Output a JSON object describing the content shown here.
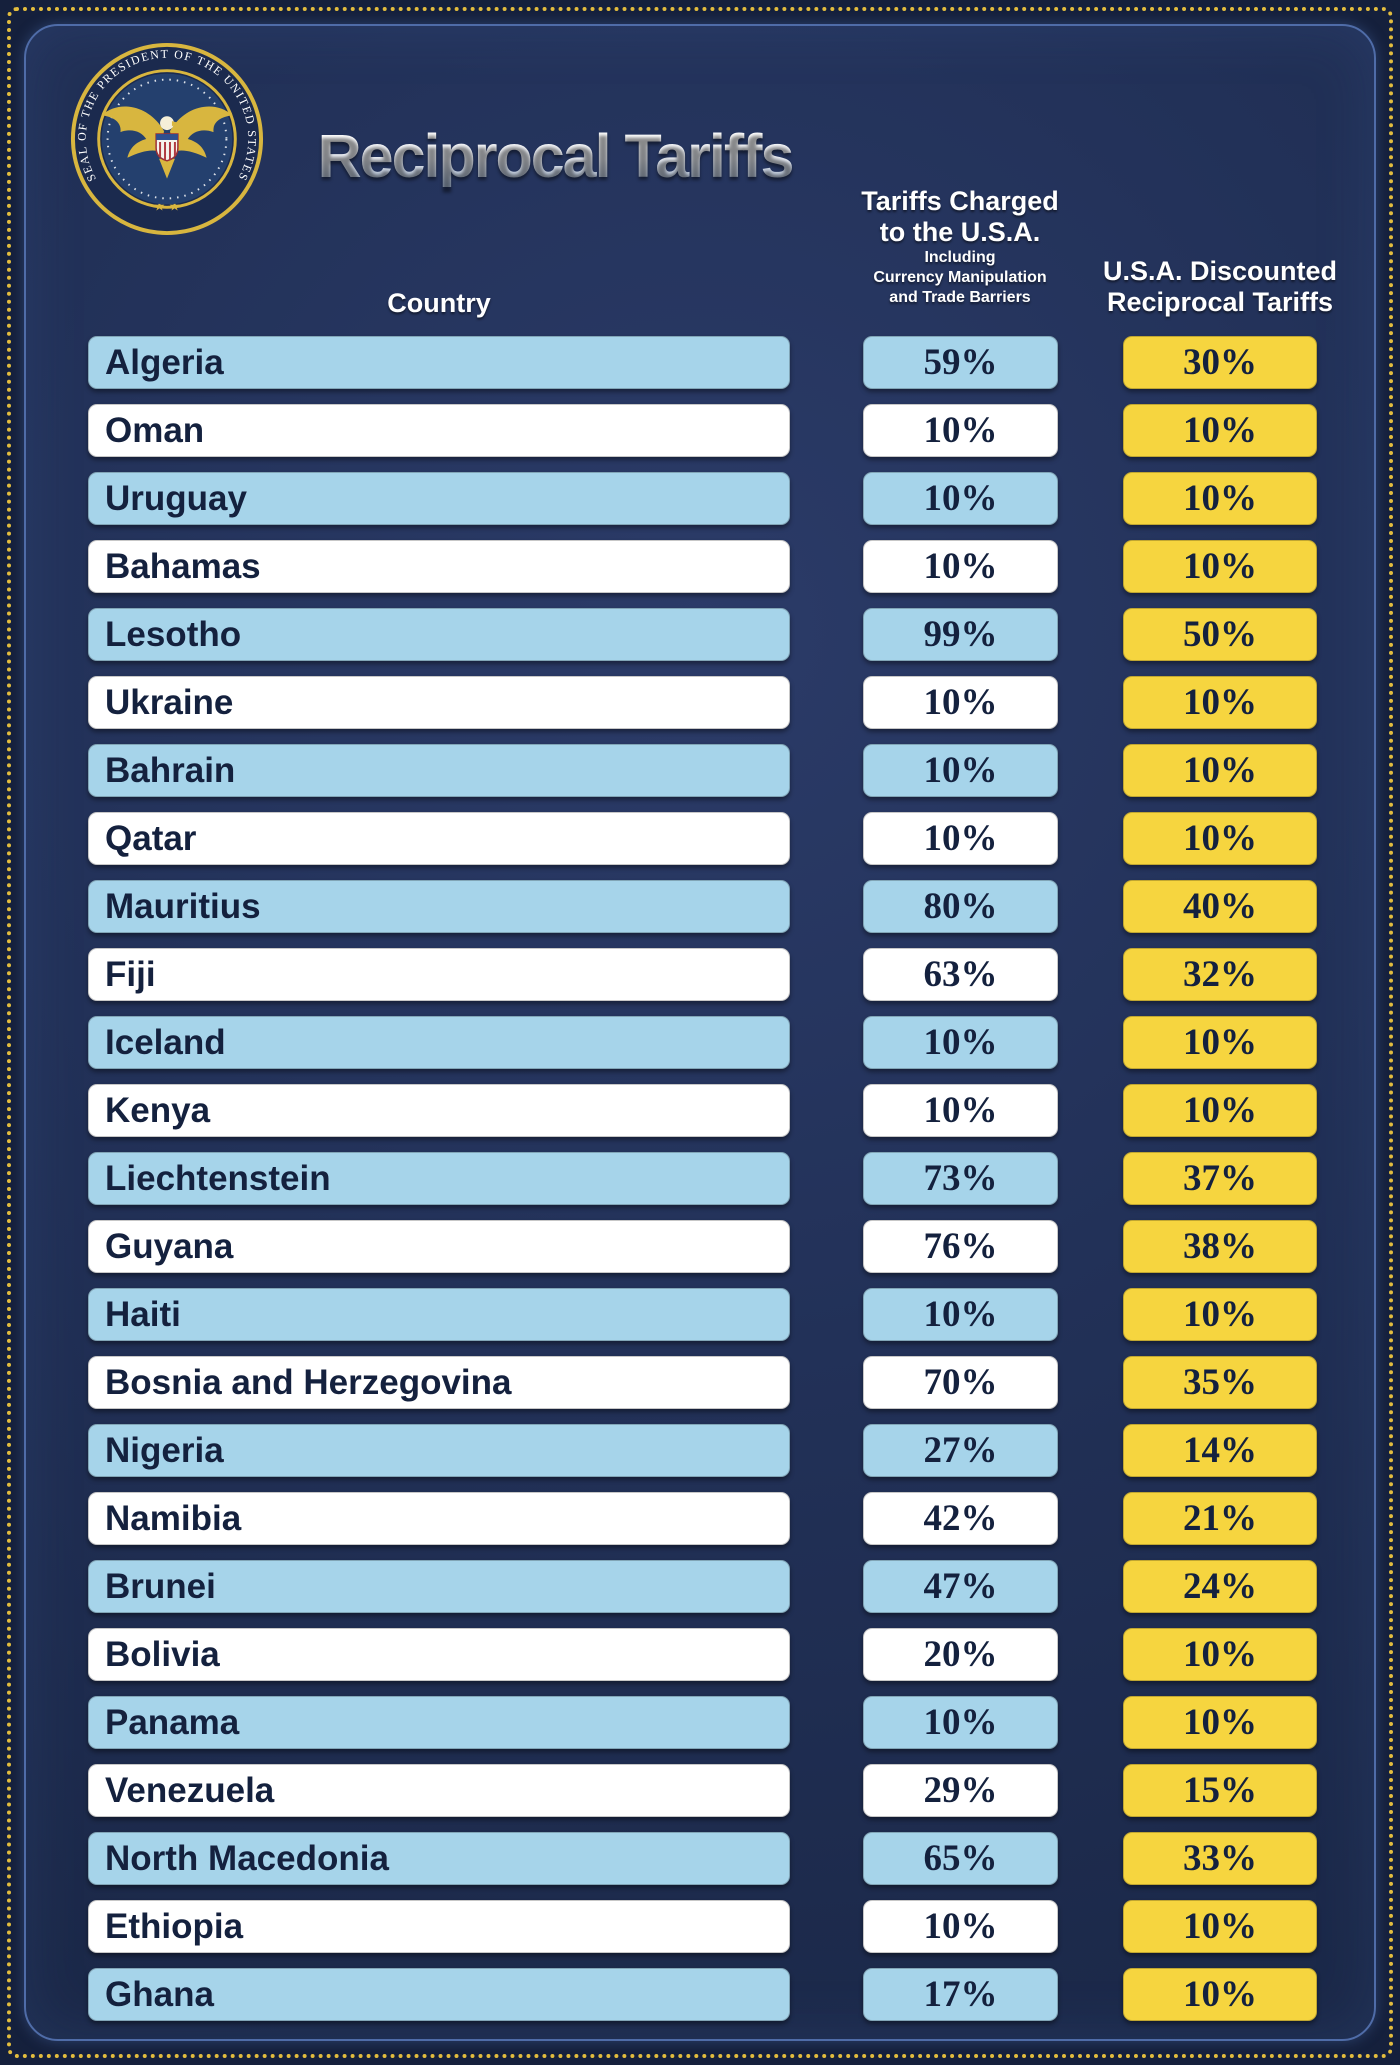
{
  "header": {
    "title": "Reciprocal Tariffs",
    "seal_text": "SEAL OF THE PRESIDENT OF THE UNITED STATES",
    "seal_stars": "★ ★",
    "col_country": "Country",
    "col_charged_l1": "Tariffs Charged",
    "col_charged_l2": "to the U.S.A.",
    "col_charged_sub1": "Including",
    "col_charged_sub2": "Currency Manipulation",
    "col_charged_sub3": "and Trade Barriers",
    "col_discounted_l1": "U.S.A. Discounted",
    "col_discounted_l2": "Reciprocal Tariffs"
  },
  "colors": {
    "background": "#1a2746",
    "row_blue": "#a6d4ea",
    "row_white": "#ffffff",
    "tariff_yellow": "#f6d53f",
    "text_navy": "#14213e",
    "border_gold": "#e3bd3e"
  },
  "chart_data": {
    "type": "table",
    "title": "Reciprocal Tariffs",
    "columns": [
      "Country",
      "Tariffs Charged to the U.S.A. Including Currency Manipulation and Trade Barriers",
      "U.S.A. Discounted Reciprocal Tariffs"
    ],
    "rows": [
      {
        "country": "Algeria",
        "charged": "59%",
        "discounted": "30%"
      },
      {
        "country": "Oman",
        "charged": "10%",
        "discounted": "10%"
      },
      {
        "country": "Uruguay",
        "charged": "10%",
        "discounted": "10%"
      },
      {
        "country": "Bahamas",
        "charged": "10%",
        "discounted": "10%"
      },
      {
        "country": "Lesotho",
        "charged": "99%",
        "discounted": "50%"
      },
      {
        "country": "Ukraine",
        "charged": "10%",
        "discounted": "10%"
      },
      {
        "country": "Bahrain",
        "charged": "10%",
        "discounted": "10%"
      },
      {
        "country": "Qatar",
        "charged": "10%",
        "discounted": "10%"
      },
      {
        "country": "Mauritius",
        "charged": "80%",
        "discounted": "40%"
      },
      {
        "country": "Fiji",
        "charged": "63%",
        "discounted": "32%"
      },
      {
        "country": "Iceland",
        "charged": "10%",
        "discounted": "10%"
      },
      {
        "country": "Kenya",
        "charged": "10%",
        "discounted": "10%"
      },
      {
        "country": "Liechtenstein",
        "charged": "73%",
        "discounted": "37%"
      },
      {
        "country": "Guyana",
        "charged": "76%",
        "discounted": "38%"
      },
      {
        "country": "Haiti",
        "charged": "10%",
        "discounted": "10%"
      },
      {
        "country": "Bosnia and Herzegovina",
        "charged": "70%",
        "discounted": "35%"
      },
      {
        "country": "Nigeria",
        "charged": "27%",
        "discounted": "14%"
      },
      {
        "country": "Namibia",
        "charged": "42%",
        "discounted": "21%"
      },
      {
        "country": "Brunei",
        "charged": "47%",
        "discounted": "24%"
      },
      {
        "country": "Bolivia",
        "charged": "20%",
        "discounted": "10%"
      },
      {
        "country": "Panama",
        "charged": "10%",
        "discounted": "10%"
      },
      {
        "country": "Venezuela",
        "charged": "29%",
        "discounted": "15%"
      },
      {
        "country": "North Macedonia",
        "charged": "65%",
        "discounted": "33%"
      },
      {
        "country": "Ethiopia",
        "charged": "10%",
        "discounted": "10%"
      },
      {
        "country": "Ghana",
        "charged": "17%",
        "discounted": "10%"
      }
    ]
  }
}
